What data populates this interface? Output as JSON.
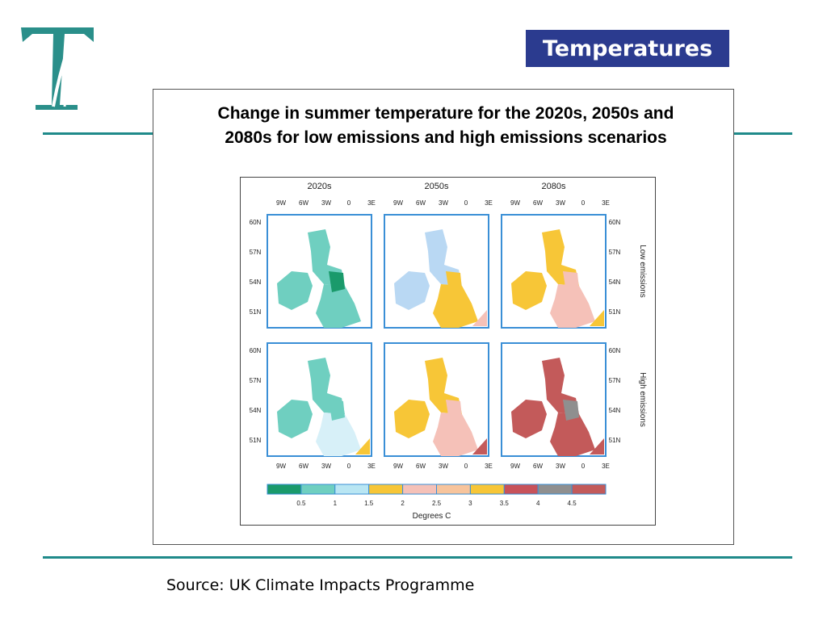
{
  "header": {
    "title": "Temperatures"
  },
  "logo": {
    "letter": "T",
    "alt": "Logo"
  },
  "figure": {
    "caption": "Change in summer temperature for the 2020s, 2050s and 2080s for low emissions and high emissions scenarios",
    "columns": [
      "2020s",
      "2050s",
      "2080s"
    ],
    "rows": [
      "Low emissions",
      "High emissions"
    ],
    "lon_ticks": [
      "9W",
      "6W",
      "3W",
      "0",
      "3E"
    ],
    "lat_ticks": [
      "60N",
      "57N",
      "54N",
      "51N"
    ],
    "legend": {
      "title": "Degrees C",
      "ticks": [
        "0.5",
        "1",
        "1.5",
        "2",
        "2.5",
        "3",
        "3.5",
        "4",
        "4.5"
      ],
      "colors": [
        "#1a9a6b",
        "#6fcfc0",
        "#b9e6f3",
        "#f7c637",
        "#f5c1b8",
        "#f7c49c",
        "#f7c637",
        "#c8525a",
        "#8f8f8f",
        "#c35a5a"
      ]
    },
    "maps": [
      {
        "period": "2020s",
        "scenario": "Low emissions",
        "land": "#6fcfc0",
        "secondary": "#1a9a6b",
        "south": "#6fcfc0",
        "corner": null
      },
      {
        "period": "2050s",
        "scenario": "Low emissions",
        "land": "#b9d8f3",
        "secondary": "#f7c637",
        "south": "#f7c637",
        "corner": "#f5c1b8"
      },
      {
        "period": "2080s",
        "scenario": "Low emissions",
        "land": "#f7c637",
        "secondary": "#f5c1b8",
        "south": "#f5c1b8",
        "corner": "#f7c637"
      },
      {
        "period": "2020s",
        "scenario": "High emissions",
        "land": "#6fcfc0",
        "secondary": "#6fcfc0",
        "south": "#d7f0f8",
        "corner": "#f7c637"
      },
      {
        "period": "2050s",
        "scenario": "High emissions",
        "land": "#f7c637",
        "secondary": "#f5c1b8",
        "south": "#f5c1b8",
        "corner": "#c35a5a"
      },
      {
        "period": "2080s",
        "scenario": "High emissions",
        "land": "#c35a5a",
        "secondary": "#8f8f8f",
        "south": "#c35a5a",
        "corner": "#c35a5a"
      }
    ]
  },
  "footer": {
    "source": "Source: UK Climate Impacts Programme"
  },
  "colors": {
    "accent": "#1f8a8a",
    "title_bg": "#2b3b8f",
    "map_border": "#3a8fd6"
  }
}
